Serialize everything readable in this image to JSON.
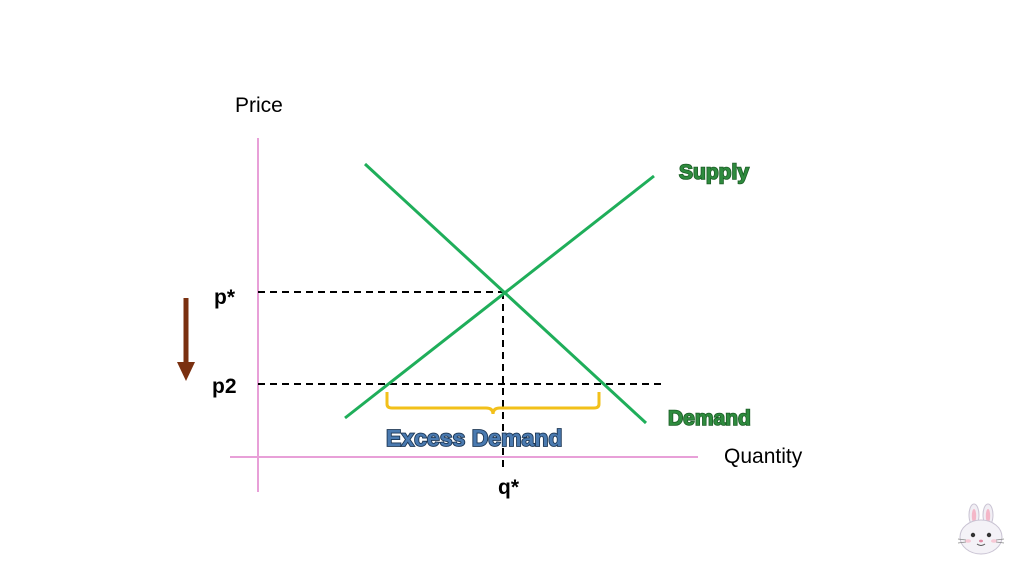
{
  "diagram": {
    "axis_labels": {
      "y": "Price",
      "x": "Quantity"
    },
    "curves": {
      "supply": "Supply",
      "demand": "Demand"
    },
    "price_marks": {
      "equilibrium": "p*",
      "lower": "p2"
    },
    "quantity_marks": {
      "equilibrium": "q*"
    },
    "annotation": "Excess Demand",
    "colors": {
      "axis": "#e8a0d8",
      "curve": "#1fae5a",
      "curve_label_fill": "#2e8b3e",
      "curve_label_outline": "#1a5c24",
      "bracket": "#f2c01a",
      "annotation_fill": "#4a7ab0",
      "annotation_outline": "#1b3553",
      "arrow": "#7a3010",
      "dashed": "#000000"
    },
    "icons": {
      "mascot": "bunny-face-icon",
      "arrow": "down-arrow-icon"
    }
  }
}
